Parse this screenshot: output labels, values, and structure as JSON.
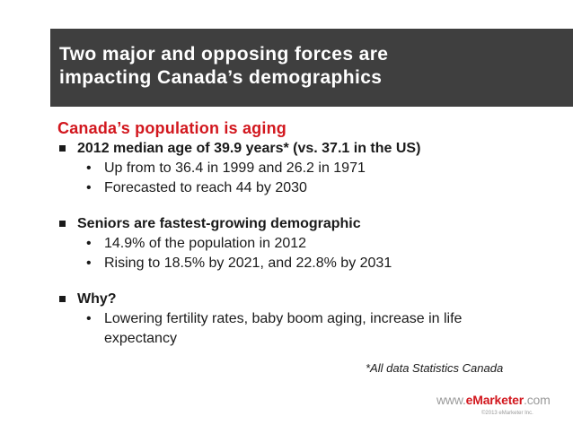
{
  "title": {
    "line1": "Two major and opposing forces are",
    "line2": "impacting Canada’s demographics"
  },
  "section_heading": "Canada’s population is aging",
  "bullets": [
    {
      "text": "2012 median age of 39.9 years* (vs. 37.1 in the US)",
      "subs": [
        "Up from to 36.4 in 1999 and 26.2 in 1971",
        "Forecasted to reach 44 by 2030"
      ]
    },
    {
      "text": "Seniors are fastest-growing demographic",
      "subs": [
        "14.9% of the population in 2012",
        "Rising to 18.5% by 2021, and 22.8% by 2031"
      ]
    },
    {
      "text": "Why?",
      "subs": [
        "Lowering fertility rates, baby boom aging, increase in life expectancy"
      ]
    }
  ],
  "footnote": "*All data Statistics Canada",
  "logo": {
    "prefix": "www.",
    "brand": "eMarketer",
    "suffix": ".com"
  },
  "copyright": "©2013 eMarketer Inc.",
  "colors": {
    "title_band": "#3f3f3f",
    "accent_red": "#d2171e",
    "logo_gray": "#9a9a9a"
  }
}
